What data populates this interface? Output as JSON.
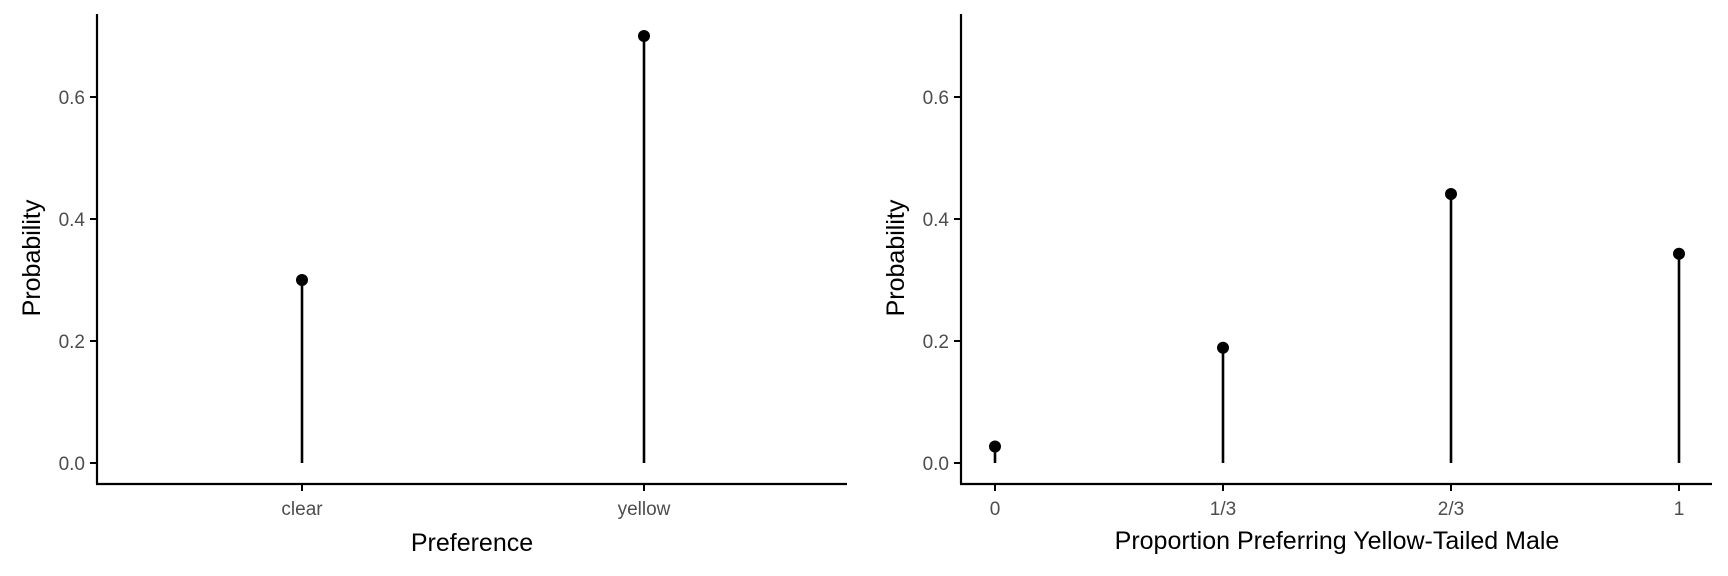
{
  "chart_data": [
    {
      "type": "lollipop",
      "categories": [
        "clear",
        "yellow"
      ],
      "values": [
        0.3,
        0.7
      ],
      "xlabel": "Preference",
      "ylabel": "Probability",
      "ylim": [
        0,
        0.72
      ],
      "yticks": [
        "0.0",
        "0.2",
        "0.4",
        "0.6"
      ],
      "grid": false
    },
    {
      "type": "lollipop",
      "categories": [
        "0",
        "1/3",
        "2/3",
        "1"
      ],
      "values": [
        0.027,
        0.189,
        0.441,
        0.343
      ],
      "xlabel": "Proportion Preferring Yellow-Tailed Male",
      "ylabel": "Probability",
      "ylim": [
        0,
        0.72
      ],
      "yticks": [
        "0.0",
        "0.2",
        "0.4",
        "0.6"
      ],
      "grid": false
    }
  ]
}
